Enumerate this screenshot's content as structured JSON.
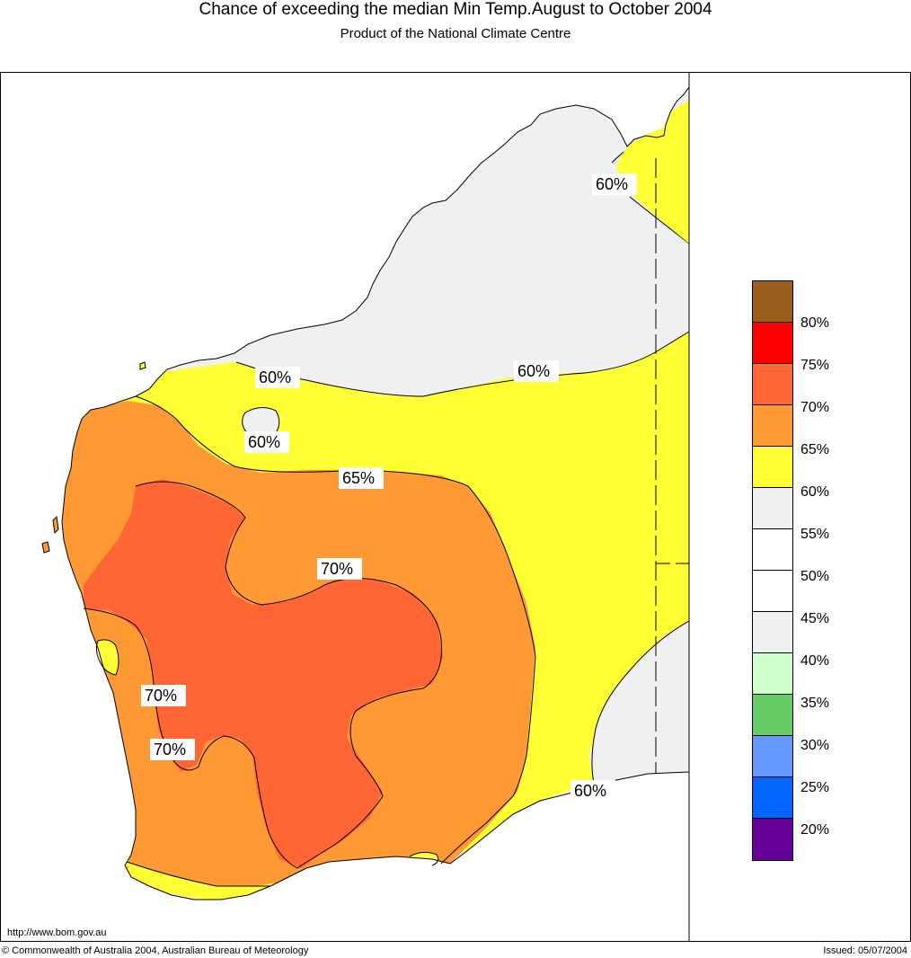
{
  "title": "Chance of exceeding the median Min Temp.August to October 2004",
  "subtitle": "Product of the National Climate Centre",
  "contour_labels": {
    "north_60": "60%",
    "west_60": "60%",
    "central_60": "60%",
    "inland_60": "60%",
    "line_65": "65%",
    "central_70": "70%",
    "west_70a": "70%",
    "west_70b": "70%",
    "south_60": "60%"
  },
  "legend": {
    "colors": [
      "#9B5D1B",
      "#FF0000",
      "#FF6633",
      "#FF9933",
      "#FFFF33",
      "#F0F0F0",
      "#FFFFFF",
      "#FFFFFF",
      "#F0F0F0",
      "#CCFFCC",
      "#66CC66",
      "#6699FF",
      "#0066FF",
      "#660099"
    ],
    "labels": [
      "80%",
      "75%",
      "70%",
      "65%",
      "60%",
      "55%",
      "50%",
      "45%",
      "40%",
      "35%",
      "30%",
      "25%",
      "20%"
    ]
  },
  "footer": {
    "url": "http://www.bom.gov.au",
    "copyright": "© Commonwealth of Australia 2004, Australian Bureau of Meteorology",
    "issued": "Issued: 05/07/2004"
  }
}
